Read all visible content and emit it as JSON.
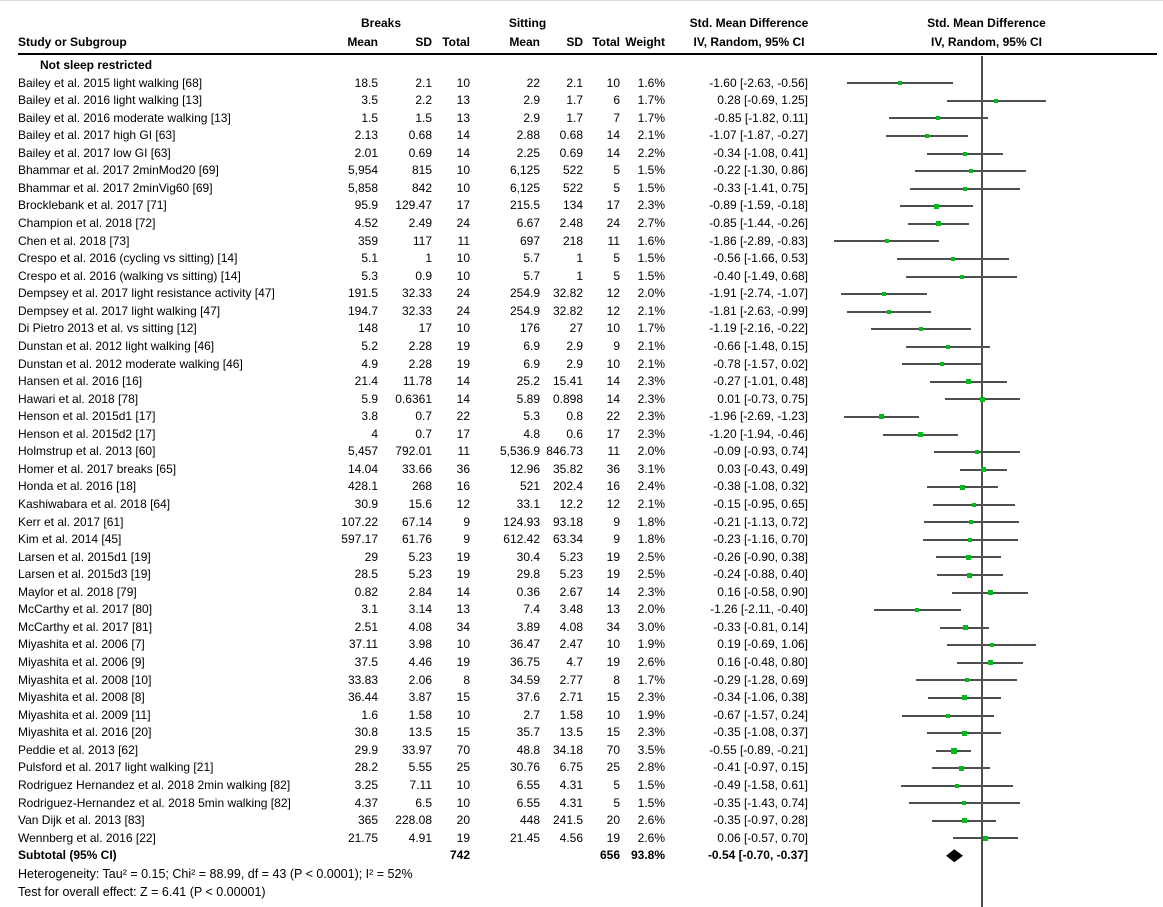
{
  "header": {
    "study_col": "Study or Subgroup",
    "group1": "Breaks",
    "group2": "Sitting",
    "mean": "Mean",
    "sd": "SD",
    "total": "Total",
    "weight": "Weight",
    "effect_col_title": "Std. Mean Difference",
    "effect_col_subtitle": "IV, Random, 95% CI",
    "plot_col_title": "Std. Mean Difference",
    "plot_col_subtitle": "IV, Random, 95% CI"
  },
  "subgroup_label": "Not sleep restricted",
  "colors": {
    "marker_green": "#00bd19",
    "ci_line_gray": "#4f4f4f",
    "diamond_black": "#000000"
  },
  "chart_data": {
    "type": "scatter",
    "subtype": "forest_plot",
    "title": "Std. Mean Difference, IV, Random, 95% CI",
    "zero_line": 0,
    "legend_position": "none",
    "studies": [
      {
        "label": "Bailey et al. 2015 light walking [68]",
        "b_mean": "18.5",
        "b_sd": "2.1",
        "b_total": "10",
        "s_mean": "22",
        "s_sd": "2.1",
        "s_total": "10",
        "weight": "1.6%",
        "ci_label": "-1.60 [-2.63, -0.56]",
        "smd": -1.6,
        "lo": -2.63,
        "hi": -0.56
      },
      {
        "label": "Bailey et al. 2016 light walking [13]",
        "b_mean": "3.5",
        "b_sd": "2.2",
        "b_total": "13",
        "s_mean": "2.9",
        "s_sd": "1.7",
        "s_total": "6",
        "weight": "1.7%",
        "ci_label": "0.28 [-0.69, 1.25]",
        "smd": 0.28,
        "lo": -0.69,
        "hi": 1.25
      },
      {
        "label": "Bailey et al. 2016 moderate walking [13]",
        "b_mean": "1.5",
        "b_sd": "1.5",
        "b_total": "13",
        "s_mean": "2.9",
        "s_sd": "1.7",
        "s_total": "7",
        "weight": "1.7%",
        "ci_label": "-0.85 [-1.82, 0.11]",
        "smd": -0.85,
        "lo": -1.82,
        "hi": 0.11
      },
      {
        "label": "Bailey et al. 2017 high GI [63]",
        "b_mean": "2.13",
        "b_sd": "0.68",
        "b_total": "14",
        "s_mean": "2.88",
        "s_sd": "0.68",
        "s_total": "14",
        "weight": "2.1%",
        "ci_label": "-1.07 [-1.87, -0.27]",
        "smd": -1.07,
        "lo": -1.87,
        "hi": -0.27
      },
      {
        "label": "Bailey et al. 2017 low GI [63]",
        "b_mean": "2.01",
        "b_sd": "0.69",
        "b_total": "14",
        "s_mean": "2.25",
        "s_sd": "0.69",
        "s_total": "14",
        "weight": "2.2%",
        "ci_label": "-0.34 [-1.08, 0.41]",
        "smd": -0.34,
        "lo": -1.08,
        "hi": 0.41
      },
      {
        "label": "Bhammar et al. 2017 2minMod20 [69]",
        "b_mean": "5,954",
        "b_sd": "815",
        "b_total": "10",
        "s_mean": "6,125",
        "s_sd": "522",
        "s_total": "5",
        "weight": "1.5%",
        "ci_label": "-0.22 [-1.30, 0.86]",
        "smd": -0.22,
        "lo": -1.3,
        "hi": 0.86
      },
      {
        "label": "Bhammar et al. 2017 2minVig60 [69]",
        "b_mean": "5,858",
        "b_sd": "842",
        "b_total": "10",
        "s_mean": "6,125",
        "s_sd": "522",
        "s_total": "5",
        "weight": "1.5%",
        "ci_label": "-0.33 [-1.41, 0.75]",
        "smd": -0.33,
        "lo": -1.41,
        "hi": 0.75
      },
      {
        "label": "Brocklebank et al. 2017 [71]",
        "b_mean": "95.9",
        "b_sd": "129.47",
        "b_total": "17",
        "s_mean": "215.5",
        "s_sd": "134",
        "s_total": "17",
        "weight": "2.3%",
        "ci_label": "-0.89 [-1.59, -0.18]",
        "smd": -0.89,
        "lo": -1.59,
        "hi": -0.18
      },
      {
        "label": "Champion et al. 2018 [72]",
        "b_mean": "4.52",
        "b_sd": "2.49",
        "b_total": "24",
        "s_mean": "6.67",
        "s_sd": "2.48",
        "s_total": "24",
        "weight": "2.7%",
        "ci_label": "-0.85 [-1.44, -0.26]",
        "smd": -0.85,
        "lo": -1.44,
        "hi": -0.26
      },
      {
        "label": "Chen et al. 2018 [73]",
        "b_mean": "359",
        "b_sd": "117",
        "b_total": "11",
        "s_mean": "697",
        "s_sd": "218",
        "s_total": "11",
        "weight": "1.6%",
        "ci_label": "-1.86 [-2.89, -0.83]",
        "smd": -1.86,
        "lo": -2.89,
        "hi": -0.83
      },
      {
        "label": "Crespo et al. 2016 (cycling vs sitting) [14]",
        "b_mean": "5.1",
        "b_sd": "1",
        "b_total": "10",
        "s_mean": "5.7",
        "s_sd": "1",
        "s_total": "5",
        "weight": "1.5%",
        "ci_label": "-0.56 [-1.66, 0.53]",
        "smd": -0.56,
        "lo": -1.66,
        "hi": 0.53
      },
      {
        "label": "Crespo et al. 2016 (walking vs sitting) [14]",
        "b_mean": "5.3",
        "b_sd": "0.9",
        "b_total": "10",
        "s_mean": "5.7",
        "s_sd": "1",
        "s_total": "5",
        "weight": "1.5%",
        "ci_label": "-0.40 [-1.49, 0.68]",
        "smd": -0.4,
        "lo": -1.49,
        "hi": 0.68
      },
      {
        "label": "Dempsey et al. 2017 light resistance activity [47]",
        "b_mean": "191.5",
        "b_sd": "32.33",
        "b_total": "24",
        "s_mean": "254.9",
        "s_sd": "32.82",
        "s_total": "12",
        "weight": "2.0%",
        "ci_label": "-1.91 [-2.74, -1.07]",
        "smd": -1.91,
        "lo": -2.74,
        "hi": -1.07
      },
      {
        "label": "Dempsey et al. 2017 light walking [47]",
        "b_mean": "194.7",
        "b_sd": "32.33",
        "b_total": "24",
        "s_mean": "254.9",
        "s_sd": "32.82",
        "s_total": "12",
        "weight": "2.1%",
        "ci_label": "-1.81 [-2.63, -0.99]",
        "smd": -1.81,
        "lo": -2.63,
        "hi": -0.99
      },
      {
        "label": "Di Pietro 2013 et al. vs sitting [12]",
        "b_mean": "148",
        "b_sd": "17",
        "b_total": "10",
        "s_mean": "176",
        "s_sd": "27",
        "s_total": "10",
        "weight": "1.7%",
        "ci_label": "-1.19 [-2.16, -0.22]",
        "smd": -1.19,
        "lo": -2.16,
        "hi": -0.22
      },
      {
        "label": "Dunstan et al. 2012 light walking [46]",
        "b_mean": "5.2",
        "b_sd": "2.28",
        "b_total": "19",
        "s_mean": "6.9",
        "s_sd": "2.9",
        "s_total": "9",
        "weight": "2.1%",
        "ci_label": "-0.66 [-1.48, 0.15]",
        "smd": -0.66,
        "lo": -1.48,
        "hi": 0.15
      },
      {
        "label": "Dunstan et al. 2012 moderate walking [46]",
        "b_mean": "4.9",
        "b_sd": "2.28",
        "b_total": "19",
        "s_mean": "6.9",
        "s_sd": "2.9",
        "s_total": "10",
        "weight": "2.1%",
        "ci_label": "-0.78 [-1.57, 0.02]",
        "smd": -0.78,
        "lo": -1.57,
        "hi": 0.02
      },
      {
        "label": "Hansen et al. 2016 [16]",
        "b_mean": "21.4",
        "b_sd": "11.78",
        "b_total": "14",
        "s_mean": "25.2",
        "s_sd": "15.41",
        "s_total": "14",
        "weight": "2.3%",
        "ci_label": "-0.27 [-1.01, 0.48]",
        "smd": -0.27,
        "lo": -1.01,
        "hi": 0.48
      },
      {
        "label": "Hawari et al. 2018 [78]",
        "b_mean": "5.9",
        "b_sd": "0.6361",
        "b_total": "14",
        "s_mean": "5.89",
        "s_sd": "0.898",
        "s_total": "14",
        "weight": "2.3%",
        "ci_label": "0.01 [-0.73, 0.75]",
        "smd": 0.01,
        "lo": -0.73,
        "hi": 0.75
      },
      {
        "label": "Henson et al. 2015d1 [17]",
        "b_mean": "3.8",
        "b_sd": "0.7",
        "b_total": "22",
        "s_mean": "5.3",
        "s_sd": "0.8",
        "s_total": "22",
        "weight": "2.3%",
        "ci_label": "-1.96 [-2.69, -1.23]",
        "smd": -1.96,
        "lo": -2.69,
        "hi": -1.23
      },
      {
        "label": "Henson et al. 2015d2 [17]",
        "b_mean": "4",
        "b_sd": "0.7",
        "b_total": "17",
        "s_mean": "4.8",
        "s_sd": "0.6",
        "s_total": "17",
        "weight": "2.3%",
        "ci_label": "-1.20 [-1.94, -0.46]",
        "smd": -1.2,
        "lo": -1.94,
        "hi": -0.46
      },
      {
        "label": "Holmstrup et al. 2013 [60]",
        "b_mean": "5,457",
        "b_sd": "792.01",
        "b_total": "11",
        "s_mean": "5,536.9",
        "s_sd": "846.73",
        "s_total": "11",
        "weight": "2.0%",
        "ci_label": "-0.09 [-0.93, 0.74]",
        "smd": -0.09,
        "lo": -0.93,
        "hi": 0.74
      },
      {
        "label": "Homer et al. 2017 breaks [65]",
        "b_mean": "14.04",
        "b_sd": "33.66",
        "b_total": "36",
        "s_mean": "12.96",
        "s_sd": "35.82",
        "s_total": "36",
        "weight": "3.1%",
        "ci_label": "0.03 [-0.43, 0.49]",
        "smd": 0.03,
        "lo": -0.43,
        "hi": 0.49
      },
      {
        "label": "Honda et al. 2016  [18]",
        "b_mean": "428.1",
        "b_sd": "268",
        "b_total": "16",
        "s_mean": "521",
        "s_sd": "202.4",
        "s_total": "16",
        "weight": "2.4%",
        "ci_label": "-0.38 [-1.08, 0.32]",
        "smd": -0.38,
        "lo": -1.08,
        "hi": 0.32
      },
      {
        "label": "Kashiwabara et al. 2018 [64]",
        "b_mean": "30.9",
        "b_sd": "15.6",
        "b_total": "12",
        "s_mean": "33.1",
        "s_sd": "12.2",
        "s_total": "12",
        "weight": "2.1%",
        "ci_label": "-0.15 [-0.95, 0.65]",
        "smd": -0.15,
        "lo": -0.95,
        "hi": 0.65
      },
      {
        "label": "Kerr et al. 2017 [61]",
        "b_mean": "107.22",
        "b_sd": "67.14",
        "b_total": "9",
        "s_mean": "124.93",
        "s_sd": "93.18",
        "s_total": "9",
        "weight": "1.8%",
        "ci_label": "-0.21 [-1.13, 0.72]",
        "smd": -0.21,
        "lo": -1.13,
        "hi": 0.72
      },
      {
        "label": "Kim et al. 2014 [45]",
        "b_mean": "597.17",
        "b_sd": "61.76",
        "b_total": "9",
        "s_mean": "612.42",
        "s_sd": "63.34",
        "s_total": "9",
        "weight": "1.8%",
        "ci_label": "-0.23 [-1.16, 0.70]",
        "smd": -0.23,
        "lo": -1.16,
        "hi": 0.7
      },
      {
        "label": "Larsen et al. 2015d1 [19]",
        "b_mean": "29",
        "b_sd": "5.23",
        "b_total": "19",
        "s_mean": "30.4",
        "s_sd": "5.23",
        "s_total": "19",
        "weight": "2.5%",
        "ci_label": "-0.26 [-0.90, 0.38]",
        "smd": -0.26,
        "lo": -0.9,
        "hi": 0.38
      },
      {
        "label": "Larsen et al. 2015d3 [19]",
        "b_mean": "28.5",
        "b_sd": "5.23",
        "b_total": "19",
        "s_mean": "29.8",
        "s_sd": "5.23",
        "s_total": "19",
        "weight": "2.5%",
        "ci_label": "-0.24 [-0.88, 0.40]",
        "smd": -0.24,
        "lo": -0.88,
        "hi": 0.4
      },
      {
        "label": "Maylor et al. 2018 [79]",
        "b_mean": "0.82",
        "b_sd": "2.84",
        "b_total": "14",
        "s_mean": "0.36",
        "s_sd": "2.67",
        "s_total": "14",
        "weight": "2.3%",
        "ci_label": "0.16 [-0.58, 0.90]",
        "smd": 0.16,
        "lo": -0.58,
        "hi": 0.9
      },
      {
        "label": "McCarthy et al. 2017 [80]",
        "b_mean": "3.1",
        "b_sd": "3.14",
        "b_total": "13",
        "s_mean": "7.4",
        "s_sd": "3.48",
        "s_total": "13",
        "weight": "2.0%",
        "ci_label": "-1.26 [-2.11, -0.40]",
        "smd": -1.26,
        "lo": -2.11,
        "hi": -0.4
      },
      {
        "label": "McCarthy et al. 2017 [81]",
        "b_mean": "2.51",
        "b_sd": "4.08",
        "b_total": "34",
        "s_mean": "3.89",
        "s_sd": "4.08",
        "s_total": "34",
        "weight": "3.0%",
        "ci_label": "-0.33 [-0.81, 0.14]",
        "smd": -0.33,
        "lo": -0.81,
        "hi": 0.14
      },
      {
        "label": "Miyashita et al. 2006 [7]",
        "b_mean": "37.11",
        "b_sd": "3.98",
        "b_total": "10",
        "s_mean": "36.47",
        "s_sd": "2.47",
        "s_total": "10",
        "weight": "1.9%",
        "ci_label": "0.19 [-0.69, 1.06]",
        "smd": 0.19,
        "lo": -0.69,
        "hi": 1.06
      },
      {
        "label": "Miyashita et al. 2006 [9]",
        "b_mean": "37.5",
        "b_sd": "4.46",
        "b_total": "19",
        "s_mean": "36.75",
        "s_sd": "4.7",
        "s_total": "19",
        "weight": "2.6%",
        "ci_label": "0.16 [-0.48, 0.80]",
        "smd": 0.16,
        "lo": -0.48,
        "hi": 0.8
      },
      {
        "label": "Miyashita et al. 2008 [10]",
        "b_mean": "33.83",
        "b_sd": "2.06",
        "b_total": "8",
        "s_mean": "34.59",
        "s_sd": "2.77",
        "s_total": "8",
        "weight": "1.7%",
        "ci_label": "-0.29 [-1.28, 0.69]",
        "smd": -0.29,
        "lo": -1.28,
        "hi": 0.69
      },
      {
        "label": "Miyashita et al. 2008 [8]",
        "b_mean": "36.44",
        "b_sd": "3.87",
        "b_total": "15",
        "s_mean": "37.6",
        "s_sd": "2.71",
        "s_total": "15",
        "weight": "2.3%",
        "ci_label": "-0.34 [-1.06, 0.38]",
        "smd": -0.34,
        "lo": -1.06,
        "hi": 0.38
      },
      {
        "label": "Miyashita et al. 2009 [11]",
        "b_mean": "1.6",
        "b_sd": "1.58",
        "b_total": "10",
        "s_mean": "2.7",
        "s_sd": "1.58",
        "s_total": "10",
        "weight": "1.9%",
        "ci_label": "-0.67 [-1.57, 0.24]",
        "smd": -0.67,
        "lo": -1.57,
        "hi": 0.24
      },
      {
        "label": "Miyashita et al. 2016 [20]",
        "b_mean": "30.8",
        "b_sd": "13.5",
        "b_total": "15",
        "s_mean": "35.7",
        "s_sd": "13.5",
        "s_total": "15",
        "weight": "2.3%",
        "ci_label": "-0.35 [-1.08, 0.37]",
        "smd": -0.35,
        "lo": -1.08,
        "hi": 0.37
      },
      {
        "label": "Peddie et al. 2013 [62]",
        "b_mean": "29.9",
        "b_sd": "33.97",
        "b_total": "70",
        "s_mean": "48.8",
        "s_sd": "34.18",
        "s_total": "70",
        "weight": "3.5%",
        "ci_label": "-0.55 [-0.89, -0.21]",
        "smd": -0.55,
        "lo": -0.89,
        "hi": -0.21
      },
      {
        "label": "Pulsford et al. 2017 light walking [21]",
        "b_mean": "28.2",
        "b_sd": "5.55",
        "b_total": "25",
        "s_mean": "30.76",
        "s_sd": "6.75",
        "s_total": "25",
        "weight": "2.8%",
        "ci_label": "-0.41 [-0.97, 0.15]",
        "smd": -0.41,
        "lo": -0.97,
        "hi": 0.15
      },
      {
        "label": "Rodriguez Hernandez et al. 2018 2min walking [82]",
        "b_mean": "3.25",
        "b_sd": "7.11",
        "b_total": "10",
        "s_mean": "6.55",
        "s_sd": "4.31",
        "s_total": "5",
        "weight": "1.5%",
        "ci_label": "-0.49 [-1.58, 0.61]",
        "smd": -0.49,
        "lo": -1.58,
        "hi": 0.61
      },
      {
        "label": "Rodriguez-Hernandez et al. 2018 5min walking [82]",
        "b_mean": "4.37",
        "b_sd": "6.5",
        "b_total": "10",
        "s_mean": "6.55",
        "s_sd": "4.31",
        "s_total": "5",
        "weight": "1.5%",
        "ci_label": "-0.35 [-1.43, 0.74]",
        "smd": -0.35,
        "lo": -1.43,
        "hi": 0.74
      },
      {
        "label": "Van Dijk et al. 2013 [83]",
        "b_mean": "365",
        "b_sd": "228.08",
        "b_total": "20",
        "s_mean": "448",
        "s_sd": "241.5",
        "s_total": "20",
        "weight": "2.6%",
        "ci_label": "-0.35 [-0.97, 0.28]",
        "smd": -0.35,
        "lo": -0.97,
        "hi": 0.28
      },
      {
        "label": "Wennberg et al. 2016 [22]",
        "b_mean": "21.75",
        "b_sd": "4.91",
        "b_total": "19",
        "s_mean": "21.45",
        "s_sd": "4.56",
        "s_total": "19",
        "weight": "2.6%",
        "ci_label": "0.06 [-0.57, 0.70]",
        "smd": 0.06,
        "lo": -0.57,
        "hi": 0.7
      }
    ],
    "subtotal": {
      "label": "Subtotal (95% CI)",
      "b_total": "742",
      "s_total": "656",
      "weight": "93.8%",
      "ci_label": "-0.54 [-0.70, -0.37]",
      "smd": -0.54,
      "lo": -0.7,
      "hi": -0.37
    }
  },
  "footer": {
    "heterogeneity": "Heterogeneity: Tau² = 0.15; Chi² = 88.99, df = 43 (P < 0.0001); I² = 52%",
    "overall_effect": "Test for overall effect: Z = 6.41 (P < 0.00001)"
  }
}
